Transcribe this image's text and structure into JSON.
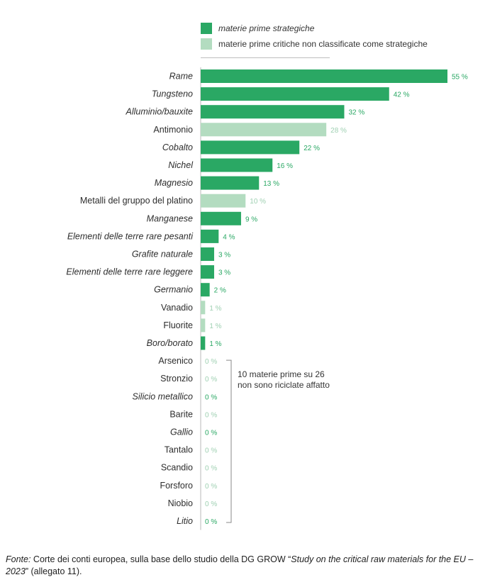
{
  "legend": {
    "items": [
      {
        "label": "materie prime strategiche",
        "color": "#2aa864",
        "italic": true
      },
      {
        "label": "materie prime critiche non classificate come strategiche",
        "color": "#b3dcc0",
        "italic": false
      }
    ]
  },
  "annotation": {
    "line1": "10 materie prime su 26",
    "line2": "non sono riciclate affatto"
  },
  "source": {
    "prefix": "Fonte:",
    "text1": " Corte dei conti europea, sulla base dello studio della DG GROW “",
    "study": "Study on the critical raw materials for the EU – 2023",
    "text2": "” (allegato 11)."
  },
  "colors": {
    "strategic": "#2aa864",
    "non_strategic": "#b3dcc0",
    "strategic_label": "#2aa864",
    "non_strategic_label": "#9fd0b2"
  },
  "chart_data": {
    "type": "bar",
    "orientation": "horizontal",
    "unit": "%",
    "xlim": [
      0,
      55
    ],
    "categories": [
      "Rame",
      "Tungsteno",
      "Alluminio/bauxite",
      "Antimonio",
      "Cobalto",
      "Nichel",
      "Magnesio",
      "Metalli del gruppo del platino",
      "Manganese",
      "Elementi delle terre rare pesanti",
      "Grafite naturale",
      "Elementi delle terre rare leggere",
      "Germanio",
      "Vanadio",
      "Fluorite",
      "Boro/borato",
      "Arsenico",
      "Stronzio",
      "Silicio metallico",
      "Barite",
      "Gallio",
      "Tantalo",
      "Scandio",
      "Forsforo",
      "Niobio",
      "Litio"
    ],
    "values": [
      55,
      42,
      32,
      28,
      22,
      16,
      13,
      10,
      9,
      4,
      3,
      3,
      2,
      1,
      1,
      1,
      0,
      0,
      0,
      0,
      0,
      0,
      0,
      0,
      0,
      0
    ],
    "value_labels": [
      "55 %",
      "42 %",
      "32 %",
      "28 %",
      "22 %",
      "16 %",
      "13 %",
      "10 %",
      "9 %",
      "4 %",
      "3 %",
      "3 %",
      "2 %",
      "1 %",
      "1 %",
      "1 %",
      "0 %",
      "0 %",
      "0 %",
      "0 %",
      "0 %",
      "0 %",
      "0 %",
      "0 %",
      "0 %",
      "0 %"
    ],
    "strategic": [
      true,
      true,
      true,
      false,
      true,
      true,
      true,
      false,
      true,
      true,
      true,
      true,
      true,
      false,
      false,
      true,
      false,
      false,
      true,
      false,
      true,
      false,
      false,
      false,
      false,
      true
    ],
    "series": [
      {
        "name": "materie prime strategiche"
      },
      {
        "name": "materie prime critiche non classificate come strategiche"
      }
    ],
    "legend_position": "top",
    "grid": false
  }
}
